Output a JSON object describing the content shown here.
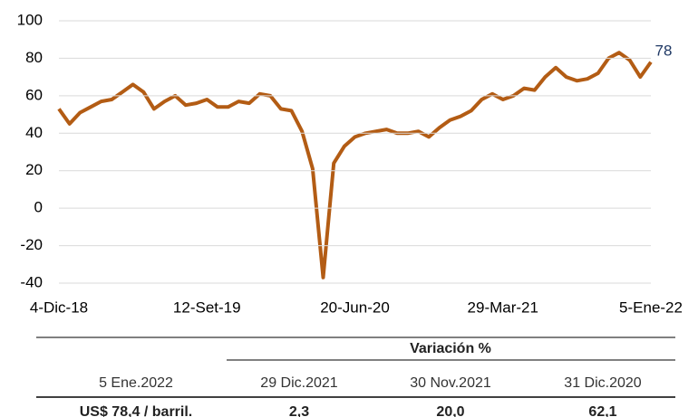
{
  "chart_data": {
    "type": "line",
    "categories": [
      "4-Dic-18",
      null,
      null,
      null,
      null,
      null,
      null,
      null,
      null,
      null,
      null,
      null,
      null,
      null,
      "12-Set-19",
      null,
      null,
      null,
      null,
      null,
      null,
      null,
      null,
      null,
      null,
      null,
      null,
      null,
      "20-Jun-20",
      null,
      null,
      null,
      null,
      null,
      null,
      null,
      null,
      null,
      null,
      null,
      null,
      null,
      "29-Mar-21",
      null,
      null,
      null,
      null,
      null,
      null,
      null,
      null,
      null,
      null,
      null,
      null,
      null,
      "5-Ene-22"
    ],
    "series": [
      {
        "color": "#b35c14",
        "values": [
          53,
          45,
          51,
          54,
          57,
          58,
          62,
          66,
          62,
          53,
          57,
          60,
          55,
          56,
          58,
          54,
          54,
          57,
          56,
          61,
          60,
          53,
          52,
          41,
          21,
          -37,
          24,
          33,
          38,
          40,
          41,
          42,
          40,
          40,
          41,
          38,
          43,
          47,
          49,
          52,
          58,
          61,
          58,
          60,
          64,
          63,
          70,
          75,
          70,
          68,
          69,
          72,
          80,
          83,
          79,
          70,
          78
        ]
      }
    ],
    "ylim": [
      -40,
      100
    ],
    "yticks": [
      -40,
      -20,
      0,
      20,
      40,
      60,
      80,
      100
    ],
    "grid": true,
    "annotation": "78"
  },
  "table": {
    "group_header": "Variación %",
    "header": [
      "5 Ene.2022",
      "29 Dic.2021",
      "30 Nov.2021",
      "31 Dic.2020"
    ],
    "rows": [
      [
        "US$ 78,4 / barril.",
        "2,3",
        "20,0",
        "62,1"
      ]
    ]
  }
}
